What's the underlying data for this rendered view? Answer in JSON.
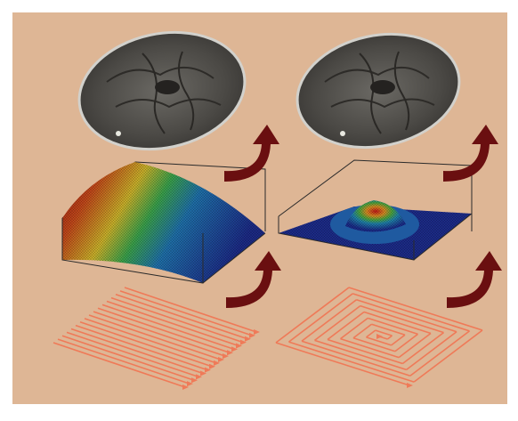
{
  "figure": {
    "colors": {
      "background": "#deb695",
      "frame": "#ffffff",
      "brain_fill": "#4d4b47",
      "brain_edge": "#c9c9c4",
      "arrow": "#6a0f10",
      "trajectory": "#ef7a58",
      "mesh_low": "#1a2a88",
      "mesh_high": "#b01616"
    },
    "columns": [
      {
        "name": "cartesian",
        "trajectory_pattern": "parallel-lines",
        "kspace_shape": "ramp",
        "image": "mri-axial-brain-slice"
      },
      {
        "name": "spiral",
        "trajectory_pattern": "square-spiral",
        "kspace_shape": "centered-peak",
        "image": "mri-axial-brain-slice"
      }
    ],
    "arrow_icon": "curved-arrow-up-icon"
  }
}
